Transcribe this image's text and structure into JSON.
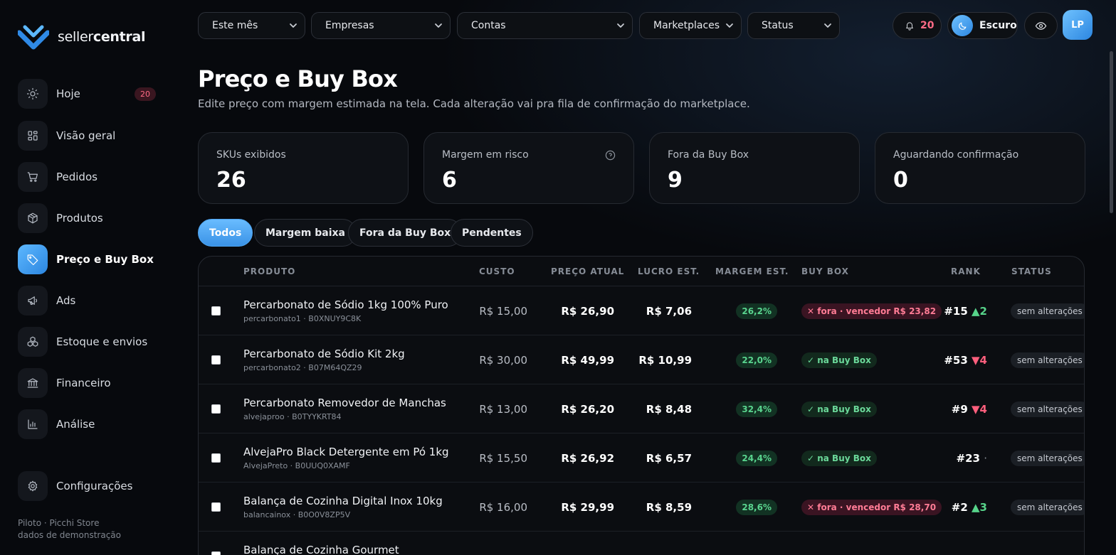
{
  "brand": {
    "name_light": "seller",
    "name_bold": "central"
  },
  "sidebar": {
    "items": [
      {
        "label": "Hoje",
        "icon": "sun-icon",
        "badge": "20"
      },
      {
        "label": "Visão geral",
        "icon": "grid-icon"
      },
      {
        "label": "Pedidos",
        "icon": "cart-icon"
      },
      {
        "label": "Produtos",
        "icon": "box-icon"
      },
      {
        "label": "Preço e Buy Box",
        "icon": "tag-icon",
        "active": true
      },
      {
        "label": "Ads",
        "icon": "megaphone-icon"
      },
      {
        "label": "Estoque e envios",
        "icon": "boxes-icon"
      },
      {
        "label": "Financeiro",
        "icon": "bank-icon"
      },
      {
        "label": "Análise",
        "icon": "bar-chart-icon"
      },
      {
        "label": "Configurações",
        "icon": "gear-icon"
      }
    ],
    "footer_line1": "Piloto · Picchi Store",
    "footer_line2": "dados de demonstração"
  },
  "topbar": {
    "filters": [
      "Este mês",
      "Empresas",
      "Contas",
      "Marketplaces",
      "Status"
    ],
    "notifications_count": "20",
    "theme_label": "Escuro",
    "avatar_initials": "LP"
  },
  "page": {
    "title": "Preço e Buy Box",
    "subtitle": "Edite preço com margem estimada na tela. Cada alteração vai pra fila de confirmação do marketplace."
  },
  "stats": [
    {
      "label": "SKUs exibidos",
      "value": "26"
    },
    {
      "label": "Margem em risco",
      "value": "6",
      "help": true
    },
    {
      "label": "Fora da Buy Box",
      "value": "9"
    },
    {
      "label": "Aguardando confirmação",
      "value": "0"
    }
  ],
  "tabs": [
    "Todos",
    "Margem baixa",
    "Fora da Buy Box",
    "Pendentes"
  ],
  "active_tab": "Todos",
  "table": {
    "headers": {
      "product": "PRODUTO",
      "cost": "CUSTO",
      "price": "PREÇO ATUAL",
      "profit": "LUCRO EST.",
      "margin": "MARGEM EST.",
      "buybox": "BUY BOX",
      "rank": "RANK",
      "status": "STATUS"
    },
    "rows": [
      {
        "name": "Percarbonato de Sódio 1kg 100% Puro",
        "sku": "percarbonato1 · B0XNUY9C8K",
        "cost": "R$ 15,00",
        "price": "R$ 26,90",
        "profit": "R$ 7,06",
        "margin": "26,2%",
        "buybox": "✕ fora · vencedor R$ 23,82",
        "buybox_state": "out",
        "rank": "#15",
        "rank_delta": "▲2",
        "rank_dir": "up",
        "status": "sem alterações"
      },
      {
        "name": "Percarbonato de Sódio Kit 2kg",
        "sku": "percarbonato2 · B07M64QZ29",
        "cost": "R$ 30,00",
        "price": "R$ 49,99",
        "profit": "R$ 10,99",
        "margin": "22,0%",
        "buybox": "✓ na Buy Box",
        "buybox_state": "in",
        "rank": "#53",
        "rank_delta": "▼4",
        "rank_dir": "down",
        "status": "sem alterações"
      },
      {
        "name": "Percarbonato Removedor de Manchas",
        "sku": "alvejaproo · B0TYYKRT84",
        "cost": "R$ 13,00",
        "price": "R$ 26,20",
        "profit": "R$ 8,48",
        "margin": "32,4%",
        "buybox": "✓ na Buy Box",
        "buybox_state": "in",
        "rank": "#9",
        "rank_delta": "▼4",
        "rank_dir": "down",
        "status": "sem alterações"
      },
      {
        "name": "AlvejaPro Black Detergente em Pó 1kg",
        "sku": "AlvejaPreto · B0UUQ0XAMF",
        "cost": "R$ 15,50",
        "price": "R$ 26,92",
        "profit": "R$ 6,57",
        "margin": "24,4%",
        "buybox": "✓ na Buy Box",
        "buybox_state": "in",
        "rank": "#23",
        "rank_delta": "·",
        "rank_dir": "flat",
        "status": "sem alterações"
      },
      {
        "name": "Balança de Cozinha Digital Inox 10kg",
        "sku": "balancainox · B0O0V8ZP5V",
        "cost": "R$ 16,00",
        "price": "R$ 29,99",
        "profit": "R$ 8,59",
        "margin": "28,6%",
        "buybox": "✕ fora · vencedor R$ 28,70",
        "buybox_state": "out",
        "rank": "#2",
        "rank_delta": "▲3",
        "rank_dir": "up",
        "status": "sem alterações"
      },
      {
        "name": "Balança de Cozinha Gourmet",
        "sku": "",
        "cost": "",
        "price": "",
        "profit": "",
        "margin": "",
        "buybox": "",
        "buybox_state": "out",
        "rank": "",
        "rank_delta": "",
        "rank_dir": "down",
        "status": ""
      }
    ]
  }
}
